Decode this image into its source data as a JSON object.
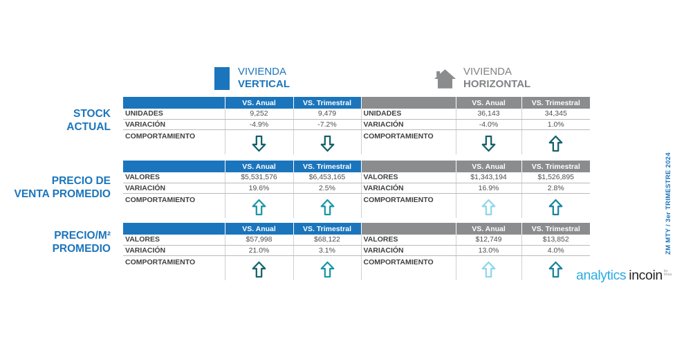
{
  "legend": {
    "vertical": {
      "line1": "VIVIENDA",
      "line2": "VERTICAL"
    },
    "horizontal": {
      "line1": "VIVIENDA",
      "line2": "HORIZONTAL"
    }
  },
  "columns": {
    "anual": "VS. Anual",
    "trimestral": "VS. Trimestral"
  },
  "sections": [
    {
      "title_line1": "STOCK",
      "title_line2": "ACTUAL",
      "metric_label": "UNIDADES",
      "variation_label": "VARIACIÓN",
      "behavior_label": "COMPORTAMIENTO",
      "vertical": {
        "anual_value": "9,252",
        "trimestral_value": "9,479",
        "anual_variation": "-4.9%",
        "trimestral_variation": "-7.2%",
        "anual_arrow": {
          "direction": "down",
          "color": "#14606B"
        },
        "trimestral_arrow": {
          "direction": "down",
          "color": "#14606B"
        }
      },
      "horizontal": {
        "anual_value": "36,143",
        "trimestral_value": "34,345",
        "anual_variation": "-4.0%",
        "trimestral_variation": "1.0%",
        "anual_arrow": {
          "direction": "down",
          "color": "#14606B"
        },
        "trimestral_arrow": {
          "direction": "up",
          "color": "#14606B"
        }
      }
    },
    {
      "title_line1": "PRECIO DE",
      "title_line2": "VENTA PROMEDIO",
      "metric_label": "VALORES",
      "variation_label": "VARIACIÓN",
      "behavior_label": "COMPORTAMIENTO",
      "vertical": {
        "anual_value": "$5,531,576",
        "trimestral_value": "$6,453,165",
        "anual_variation": "19.6%",
        "trimestral_variation": "2.5%",
        "anual_arrow": {
          "direction": "up",
          "color": "#1B97A9"
        },
        "trimestral_arrow": {
          "direction": "up",
          "color": "#1B97A9"
        }
      },
      "horizontal": {
        "anual_value": "$1,343,194",
        "trimestral_value": "$1,526,895",
        "anual_variation": "16.9%",
        "trimestral_variation": "2.8%",
        "anual_arrow": {
          "direction": "up",
          "color": "#8FD7EA"
        },
        "trimestral_arrow": {
          "direction": "up",
          "color": "#1A84A0"
        }
      }
    },
    {
      "title_line1": "PRECIO/M²",
      "title_line2": "PROMEDIO",
      "metric_label": "VALORES",
      "variation_label": "VARIACIÓN",
      "behavior_label": "COMPORTAMIENTO",
      "vertical": {
        "anual_value": "$57,998",
        "trimestral_value": "$68,122",
        "anual_variation": "21.0%",
        "trimestral_variation": "3.1%",
        "anual_arrow": {
          "direction": "up",
          "color": "#166470"
        },
        "trimestral_arrow": {
          "direction": "up",
          "color": "#1B97A9"
        }
      },
      "horizontal": {
        "anual_value": "$12,749",
        "trimestral_value": "$13,852",
        "anual_variation": "13.0%",
        "trimestral_variation": "4.0%",
        "anual_arrow": {
          "direction": "up",
          "color": "#8FD7EA"
        },
        "trimestral_arrow": {
          "direction": "up",
          "color": "#1A84A0"
        }
      }
    }
  ],
  "side_text": "ZM MTY  /  3er TRIMESTRE 2024",
  "logo": {
    "word1": "analytics",
    "word2": "incoin",
    "by_line1": "by",
    "by_line2": "tinsa"
  },
  "colors": {
    "brand_blue": "#1B75BC",
    "header_gray": "#8A8C8E",
    "arrow_dark_teal": "#14606B",
    "arrow_teal": "#1B97A9",
    "arrow_light_cyan": "#8FD7EA",
    "arrow_blue_teal": "#1A84A0",
    "logo_cyan": "#29ABE2",
    "logo_dark": "#231F20"
  },
  "chart_data": {
    "type": "table",
    "groups": [
      "VIVIENDA VERTICAL",
      "VIVIENDA HORIZONTAL"
    ],
    "columns": [
      "VS. Anual",
      "VS. Trimestral"
    ],
    "sections": [
      {
        "name": "STOCK ACTUAL",
        "metric": "UNIDADES",
        "vertical": {
          "vs_anual": 9252,
          "vs_trimestral": 9479,
          "variacion_anual_pct": -4.9,
          "variacion_trimestral_pct": -7.2,
          "comportamiento": [
            "down",
            "down"
          ]
        },
        "horizontal": {
          "vs_anual": 36143,
          "vs_trimestral": 34345,
          "variacion_anual_pct": -4.0,
          "variacion_trimestral_pct": 1.0,
          "comportamiento": [
            "down",
            "up"
          ]
        }
      },
      {
        "name": "PRECIO DE VENTA PROMEDIO",
        "metric": "VALORES",
        "vertical": {
          "vs_anual": 5531576,
          "vs_trimestral": 6453165,
          "variacion_anual_pct": 19.6,
          "variacion_trimestral_pct": 2.5,
          "comportamiento": [
            "up",
            "up"
          ]
        },
        "horizontal": {
          "vs_anual": 1343194,
          "vs_trimestral": 1526895,
          "variacion_anual_pct": 16.9,
          "variacion_trimestral_pct": 2.8,
          "comportamiento": [
            "up",
            "up"
          ]
        }
      },
      {
        "name": "PRECIO/M² PROMEDIO",
        "metric": "VALORES",
        "vertical": {
          "vs_anual": 57998,
          "vs_trimestral": 68122,
          "variacion_anual_pct": 21.0,
          "variacion_trimestral_pct": 3.1,
          "comportamiento": [
            "up",
            "up"
          ]
        },
        "horizontal": {
          "vs_anual": 12749,
          "vs_trimestral": 13852,
          "variacion_anual_pct": 13.0,
          "variacion_trimestral_pct": 4.0,
          "comportamiento": [
            "up",
            "up"
          ]
        }
      }
    ]
  }
}
